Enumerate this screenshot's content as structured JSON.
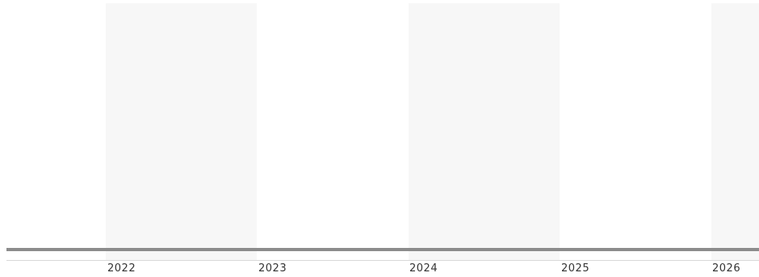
{
  "timeline": {
    "band_color": "#f7f7f7",
    "axis_color": "#8c8c8c",
    "years": [
      "2022",
      "2023",
      "2024",
      "2025",
      "2026"
    ]
  }
}
